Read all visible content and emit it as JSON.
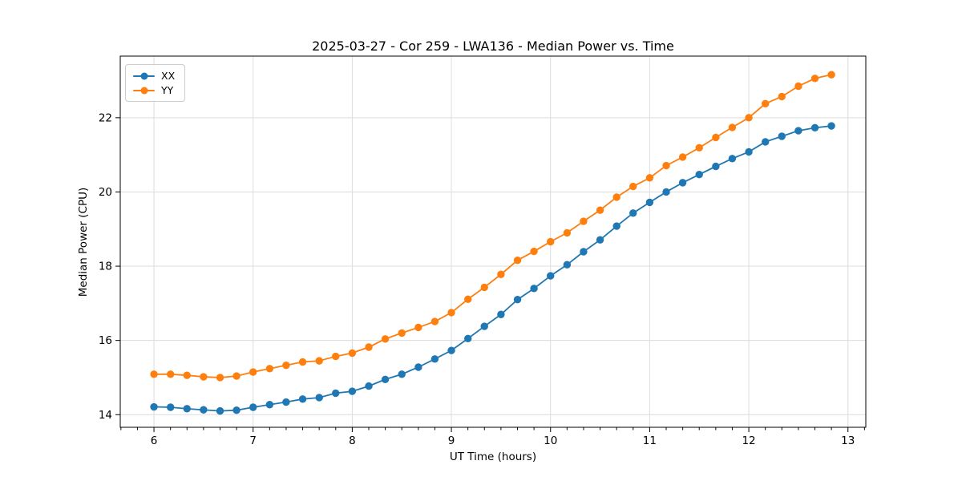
{
  "chart_data": {
    "type": "line",
    "title": "2025-03-27 - Cor 259 - LWA136 - Median Power vs. Time",
    "xlabel": "UT Time (hours)",
    "ylabel": "Median Power (CPU)",
    "xlim": [
      5.66,
      13.18
    ],
    "ylim": [
      13.66,
      23.66
    ],
    "xticks": [
      6,
      7,
      8,
      9,
      10,
      11,
      12,
      13
    ],
    "yticks": [
      14,
      16,
      18,
      20,
      22
    ],
    "x_minor_step": 0.1666667,
    "grid": true,
    "grid_color": "#dcdcdc",
    "legend_position": "upper left",
    "x": [
      6.0,
      6.167,
      6.333,
      6.5,
      6.667,
      6.833,
      7.0,
      7.167,
      7.333,
      7.5,
      7.667,
      7.833,
      8.0,
      8.167,
      8.333,
      8.5,
      8.667,
      8.833,
      9.0,
      9.167,
      9.333,
      9.5,
      9.667,
      9.833,
      10.0,
      10.167,
      10.333,
      10.5,
      10.667,
      10.833,
      11.0,
      11.167,
      11.333,
      11.5,
      11.667,
      11.833,
      12.0,
      12.167,
      12.333,
      12.5,
      12.667,
      12.833
    ],
    "series": [
      {
        "name": "XX",
        "color": "#1f77b4",
        "values": [
          14.21,
          14.2,
          14.16,
          14.13,
          14.1,
          14.12,
          14.2,
          14.27,
          14.34,
          14.42,
          14.46,
          14.58,
          14.63,
          14.77,
          14.95,
          15.09,
          15.28,
          15.5,
          15.73,
          16.05,
          16.38,
          16.7,
          17.1,
          17.4,
          17.74,
          18.04,
          18.39,
          18.71,
          19.08,
          19.43,
          19.72,
          20.0,
          20.25,
          20.47,
          20.69,
          20.9,
          21.08,
          21.35,
          21.5,
          21.65,
          21.73,
          21.78
        ]
      },
      {
        "name": "YY",
        "color": "#ff7f0e",
        "values": [
          15.09,
          15.09,
          15.06,
          15.02,
          15.0,
          15.04,
          15.15,
          15.24,
          15.33,
          15.42,
          15.45,
          15.57,
          15.66,
          15.82,
          16.04,
          16.2,
          16.35,
          16.51,
          16.75,
          17.11,
          17.43,
          17.78,
          18.16,
          18.4,
          18.66,
          18.9,
          19.21,
          19.51,
          19.86,
          20.15,
          20.38,
          20.71,
          20.94,
          21.19,
          21.47,
          21.74,
          22.0,
          22.38,
          22.57,
          22.85,
          23.06,
          23.16
        ]
      }
    ]
  }
}
